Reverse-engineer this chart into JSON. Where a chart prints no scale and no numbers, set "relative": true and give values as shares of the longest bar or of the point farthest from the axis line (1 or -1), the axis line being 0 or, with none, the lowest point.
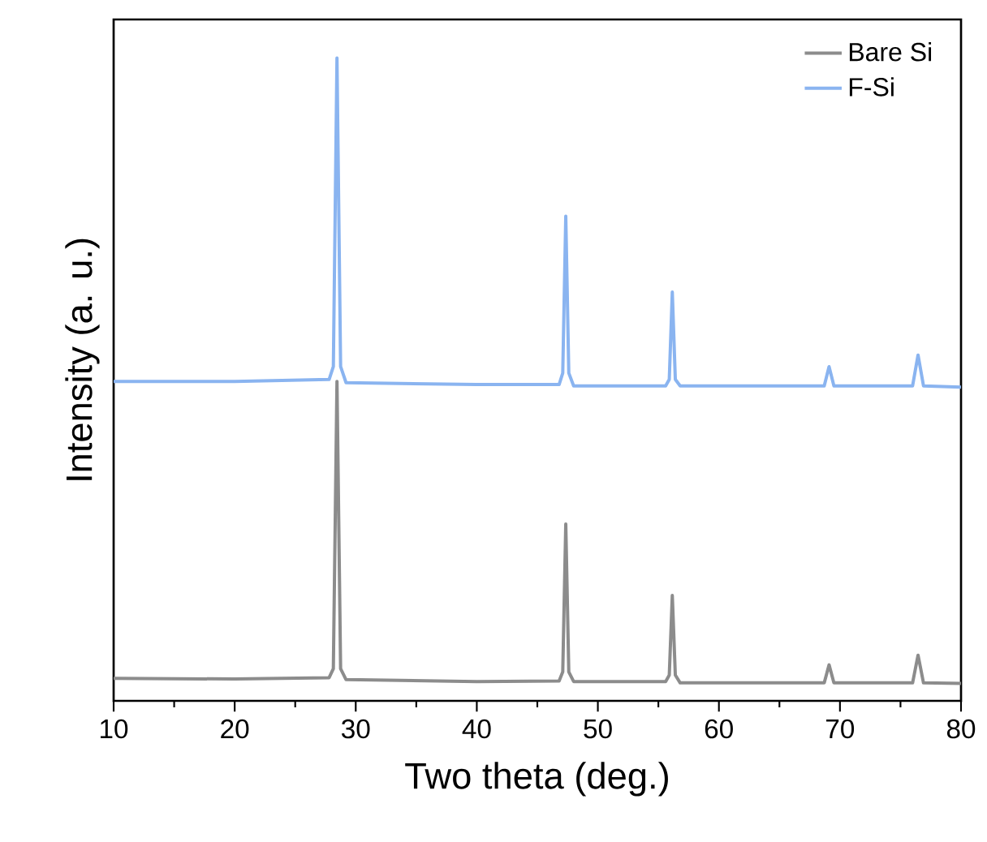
{
  "chart_data": {
    "type": "line",
    "relative": true,
    "xlabel": "Two theta (deg.)",
    "ylabel": "Intensity (a. u.)",
    "xlim": [
      10,
      80
    ],
    "xticks": [
      10,
      20,
      30,
      40,
      50,
      60,
      70,
      80
    ],
    "legend": "top right",
    "x": [
      10,
      20,
      27.8,
      28.15,
      28.45,
      28.75,
      29.2,
      40,
      46.8,
      47.1,
      47.35,
      47.6,
      48,
      55.6,
      55.9,
      56.15,
      56.4,
      56.8,
      68.7,
      69.1,
      69.5,
      76,
      76.45,
      76.9,
      80
    ],
    "series": [
      {
        "name": "Bare Si",
        "color": "#8c8c8c",
        "values": [
          0.035,
          0.034,
          0.036,
          0.05,
          0.497,
          0.05,
          0.033,
          0.03,
          0.031,
          0.045,
          0.275,
          0.045,
          0.03,
          0.03,
          0.04,
          0.164,
          0.04,
          0.028,
          0.028,
          0.056,
          0.028,
          0.028,
          0.071,
          0.028,
          0.027
        ]
      },
      {
        "name": "F-Si",
        "color": "#8ab4f0",
        "values": [
          0.497,
          0.497,
          0.5,
          0.52,
          1.0,
          0.52,
          0.495,
          0.492,
          0.492,
          0.51,
          0.754,
          0.51,
          0.49,
          0.49,
          0.5,
          0.636,
          0.5,
          0.49,
          0.49,
          0.52,
          0.49,
          0.49,
          0.538,
          0.49,
          0.488
        ]
      }
    ]
  }
}
